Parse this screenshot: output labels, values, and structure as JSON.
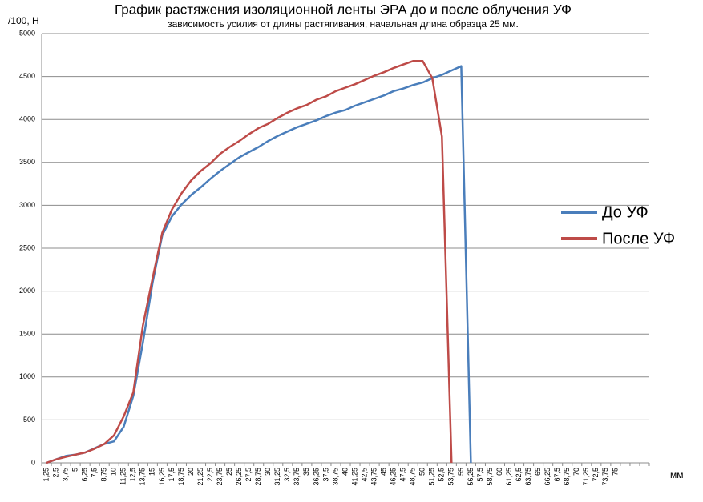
{
  "chart_data": {
    "type": "line",
    "title": "График растяжения изоляционной ленты ЭРА до и после облучения УФ",
    "subtitle": "зависимость усилия от длины растягивания, начальная длина образца 25 мм.",
    "y_label": "/100, Н",
    "x_label": "мм",
    "categories": [
      "1,25",
      "2,5",
      "3,75",
      "5",
      "6,25",
      "7,5",
      "8,75",
      "10",
      "11,25",
      "12,5",
      "13,75",
      "15",
      "16,25",
      "17,5",
      "18,75",
      "20",
      "21,25",
      "22,5",
      "23,75",
      "25",
      "26,25",
      "27,5",
      "28,75",
      "30",
      "31,25",
      "32,5",
      "33,75",
      "35",
      "36,25",
      "37,5",
      "38,75",
      "40",
      "41,25",
      "42,5",
      "43,75",
      "45",
      "46,25",
      "47,5",
      "48,75",
      "50",
      "51,25",
      "52,5",
      "53,75",
      "55",
      "56,25",
      "57,5",
      "58,75",
      "60",
      "61,25",
      "62,5",
      "63,75",
      "65",
      "66,25",
      "67,5",
      "68,75",
      "70",
      "71,25",
      "72,5",
      "73,75",
      "75",
      null,
      null,
      null
    ],
    "series": [
      {
        "name": "До УФ",
        "color": "#4a7ebb",
        "values": [
          0,
          40,
          80,
          95,
          120,
          170,
          220,
          250,
          420,
          780,
          1400,
          2100,
          2650,
          2870,
          3010,
          3120,
          3210,
          3310,
          3400,
          3480,
          3560,
          3620,
          3680,
          3750,
          3810,
          3860,
          3910,
          3950,
          3990,
          4040,
          4080,
          4110,
          4160,
          4200,
          4240,
          4280,
          4330,
          4360,
          4400,
          4430,
          4480,
          4520,
          4570,
          4620,
          0,
          null,
          null,
          null,
          null,
          null,
          null,
          null,
          null,
          null,
          null,
          null,
          null,
          null,
          null,
          null,
          null,
          null,
          null
        ]
      },
      {
        "name": "После УФ",
        "color": "#be4b48",
        "values": [
          0,
          40,
          70,
          95,
          120,
          165,
          220,
          320,
          540,
          820,
          1600,
          2150,
          2680,
          2950,
          3140,
          3290,
          3400,
          3490,
          3600,
          3680,
          3750,
          3830,
          3900,
          3950,
          4020,
          4080,
          4130,
          4170,
          4230,
          4270,
          4330,
          4370,
          4410,
          4460,
          4510,
          4550,
          4600,
          4640,
          4680,
          4680,
          4480,
          3800,
          0,
          null,
          null,
          null,
          null,
          null,
          null,
          null,
          null,
          null,
          null,
          null,
          null,
          null,
          null,
          null,
          null,
          null,
          null,
          null,
          null
        ]
      }
    ],
    "ylim": [
      0,
      5000
    ],
    "yticks": [
      0,
      500,
      1000,
      1500,
      2000,
      2500,
      3000,
      3500,
      4000,
      4500,
      5000
    ],
    "grid": true,
    "legend": "right"
  }
}
